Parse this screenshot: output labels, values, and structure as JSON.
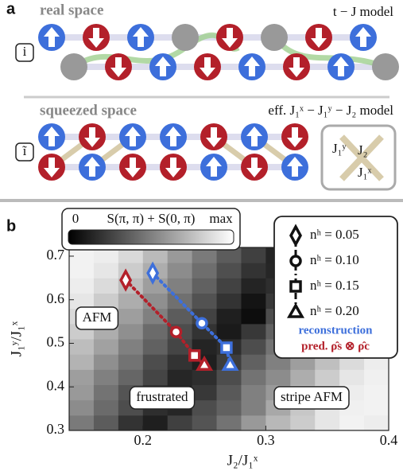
{
  "panel_a": {
    "label": "a",
    "real_space": {
      "title": "real space",
      "model": "t − J model",
      "site_label": "i"
    },
    "squeezed_space": {
      "title": "squeezed space",
      "model": "eff. J₁ˣ − J₁ʸ − J₂ model",
      "site_label": "ĩ",
      "couplings": [
        "J₁ʸ",
        "J₂",
        "J₁ˣ"
      ]
    }
  },
  "chart_data": {
    "type": "heatmap",
    "label": "b",
    "colorbar": {
      "min_label": "0",
      "title": "S(π, π) + S(0, π)",
      "max_label": "max"
    },
    "clim": [
      0,
      1
    ],
    "xlabel": "J₂/J₁ˣ",
    "ylabel": "J₁ʸ/J₁ˣ",
    "xlim": [
      0.14,
      0.4
    ],
    "ylim": [
      0.3,
      0.72
    ],
    "xticks": [
      0.2,
      0.3,
      0.4
    ],
    "yticks": [
      0.3,
      0.4,
      0.5,
      0.6,
      0.7
    ],
    "xbins": [
      0.14,
      0.16,
      0.18,
      0.2,
      0.22,
      0.24,
      0.26,
      0.28,
      0.3,
      0.32,
      0.34,
      0.36,
      0.38,
      0.4
    ],
    "ybins": [
      0.3,
      0.335,
      0.37,
      0.405,
      0.44,
      0.475,
      0.51,
      0.545,
      0.58,
      0.615,
      0.65,
      0.685,
      0.72
    ],
    "z": [
      [
        0.48,
        0.36,
        0.2,
        0.12,
        0.25,
        0.33,
        0.45,
        0.6,
        0.72,
        0.8,
        0.9,
        0.95,
        0.93
      ],
      [
        0.55,
        0.42,
        0.3,
        0.18,
        0.15,
        0.3,
        0.38,
        0.5,
        0.66,
        0.78,
        0.9,
        0.94,
        0.95
      ],
      [
        0.6,
        0.45,
        0.33,
        0.2,
        0.14,
        0.22,
        0.35,
        0.5,
        0.6,
        0.75,
        0.86,
        0.93,
        0.95
      ],
      [
        0.62,
        0.5,
        0.4,
        0.27,
        0.15,
        0.18,
        0.3,
        0.45,
        0.55,
        0.68,
        0.8,
        0.9,
        0.94
      ],
      [
        0.7,
        0.56,
        0.45,
        0.3,
        0.2,
        0.12,
        0.24,
        0.38,
        0.5,
        0.62,
        0.75,
        0.86,
        0.93
      ],
      [
        0.74,
        0.63,
        0.5,
        0.38,
        0.27,
        0.14,
        0.18,
        0.3,
        0.45,
        0.56,
        0.68,
        0.8,
        0.9
      ],
      [
        0.8,
        0.68,
        0.56,
        0.42,
        0.3,
        0.2,
        0.1,
        0.22,
        0.38,
        0.5,
        0.6,
        0.74,
        0.84
      ],
      [
        0.85,
        0.74,
        0.62,
        0.5,
        0.36,
        0.26,
        0.12,
        0.05,
        0.3,
        0.44,
        0.56,
        0.68,
        0.8
      ],
      [
        0.9,
        0.8,
        0.68,
        0.56,
        0.44,
        0.32,
        0.2,
        0.08,
        0.22,
        0.36,
        0.5,
        0.62,
        0.74
      ],
      [
        0.93,
        0.86,
        0.74,
        0.62,
        0.5,
        0.38,
        0.26,
        0.14,
        0.18,
        0.32,
        0.44,
        0.56,
        0.68
      ],
      [
        0.95,
        0.9,
        0.8,
        0.68,
        0.55,
        0.43,
        0.31,
        0.2,
        0.15,
        0.25,
        0.38,
        0.5,
        0.62
      ],
      [
        0.95,
        0.93,
        0.85,
        0.73,
        0.6,
        0.48,
        0.36,
        0.25,
        0.14,
        0.2,
        0.32,
        0.45,
        0.57
      ]
    ],
    "series": [
      {
        "name": "reconstruction",
        "color": "#3d6fdb",
        "x": [
          0.208,
          0.248,
          0.268,
          0.271
        ],
        "values": [
          0.661,
          0.546,
          0.49,
          0.451
        ]
      },
      {
        "name": "pred. ρ̂s ⊗ ρ̂c",
        "color": "#b3202a",
        "x": [
          0.186,
          0.227,
          0.242,
          0.25
        ],
        "values": [
          0.645,
          0.526,
          0.472,
          0.451
        ]
      }
    ],
    "legend_markers": [
      "nʰ = 0.05",
      "nʰ = 0.10",
      "nʰ = 0.15",
      "nʰ = 0.20"
    ],
    "annotations": [
      "AFM",
      "frustrated",
      "stripe AFM"
    ]
  }
}
